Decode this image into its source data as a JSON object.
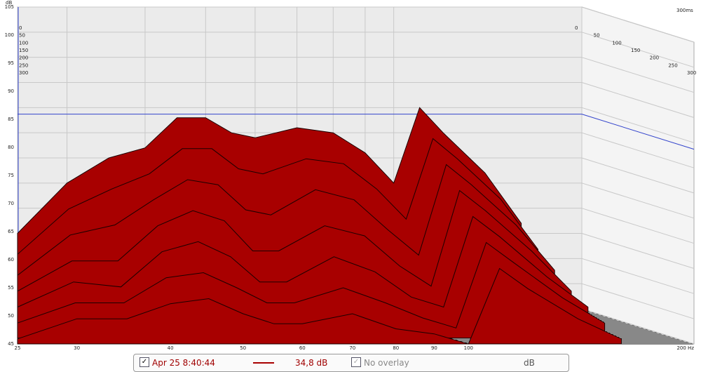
{
  "chart_data": {
    "type": "waterfall",
    "y_label": "dB",
    "z_label": "300ms",
    "x": [
      25,
      30,
      35,
      40,
      45,
      50,
      55,
      60,
      70,
      80,
      90,
      100,
      110,
      120,
      140,
      160
    ],
    "xlim": [
      25,
      200
    ],
    "log_x": true,
    "xticks": [
      25,
      30,
      40,
      50,
      60,
      70,
      80,
      90,
      100,
      {
        "value": 200,
        "label": "200 Hz"
      }
    ],
    "ylim": [
      45,
      105
    ],
    "yticks": [
      45,
      50,
      55,
      60,
      65,
      70,
      75,
      80,
      85,
      90,
      95,
      100,
      105
    ],
    "zlim": [
      0,
      300
    ],
    "zticks": [
      0,
      50,
      100,
      150,
      200,
      250,
      300
    ],
    "hline": 83.7,
    "hline_color": "#3344cc",
    "grid": true,
    "series": [
      {
        "t": 0,
        "color": "#a80000",
        "values": [
          60,
          70,
          75,
          77,
          83,
          83,
          80,
          79,
          81,
          80,
          76,
          70,
          85,
          80,
          72,
          62
        ]
      },
      {
        "t": 50,
        "color": "#a80000",
        "values": [
          57,
          66,
          70,
          73,
          78,
          78,
          74,
          73,
          76,
          75,
          70,
          64,
          80,
          76,
          68,
          58
        ]
      },
      {
        "t": 100,
        "color": "#a80000",
        "values": [
          54,
          62,
          64,
          69,
          73,
          72,
          67,
          66,
          71,
          69,
          63,
          58,
          76,
          72,
          64,
          55
        ]
      },
      {
        "t": 150,
        "color": "#a80000",
        "values": [
          52,
          58,
          58,
          65,
          68,
          66,
          60,
          60,
          65,
          63,
          57,
          53,
          72,
          68,
          60,
          52
        ]
      },
      {
        "t": 200,
        "color": "#a80000",
        "values": [
          50,
          55,
          54,
          61,
          63,
          60,
          55,
          55,
          60,
          57,
          52,
          50,
          68,
          64,
          56,
          50
        ]
      },
      {
        "t": 250,
        "color": "#a80000",
        "values": [
          48,
          52,
          52,
          57,
          58,
          55,
          52,
          52,
          55,
          52,
          49,
          47,
          64,
          60,
          53,
          48
        ]
      },
      {
        "t": 300,
        "color": "#a80000",
        "values": [
          46,
          50,
          50,
          53,
          54,
          51,
          49,
          49,
          51,
          48,
          47,
          45,
          60,
          56,
          50,
          46
        ]
      }
    ]
  },
  "status_bar": {
    "measurement": "Apr 25 8:40:44",
    "line_color": "#a80000",
    "level": "34,8 dB",
    "overlay": "No overlay",
    "unit": "dB"
  }
}
